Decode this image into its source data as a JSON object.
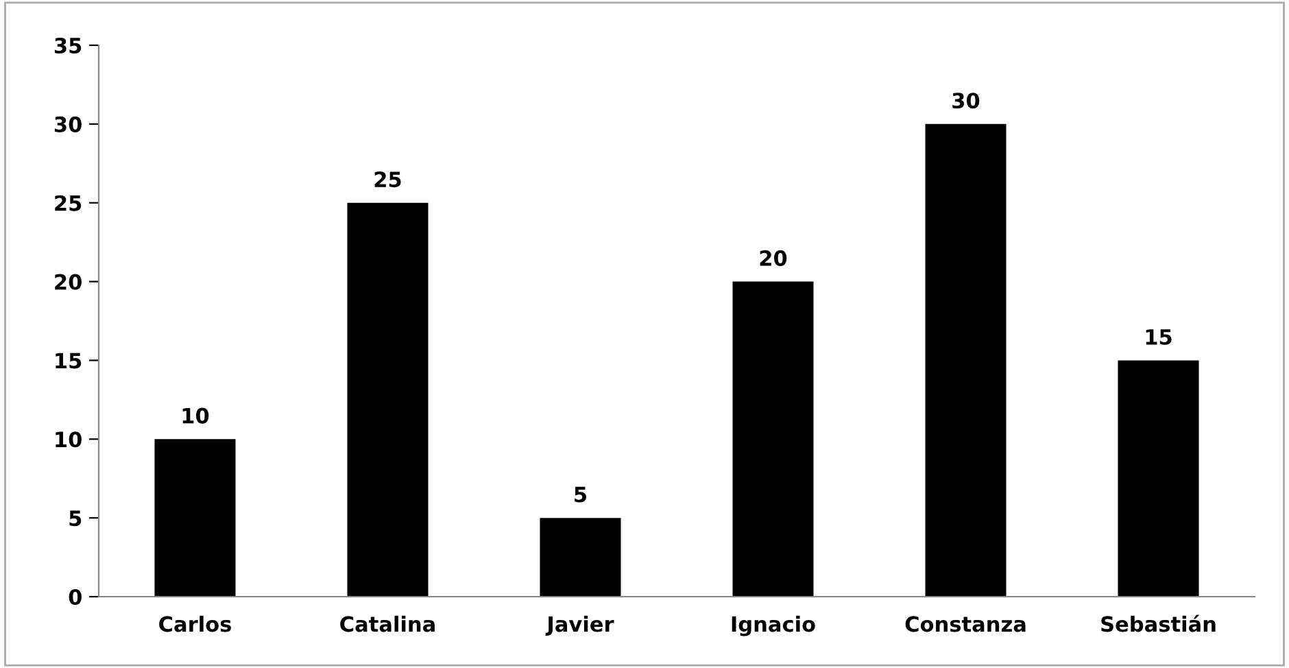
{
  "chart_data": {
    "type": "bar",
    "categories": [
      "Carlos",
      "Catalina",
      "Javier",
      "Ignacio",
      "Constanza",
      "Sebastián"
    ],
    "values": [
      10,
      25,
      5,
      20,
      30,
      15
    ],
    "color": "#000000",
    "ylim": [
      0,
      35
    ],
    "yticks": [
      0,
      5,
      10,
      15,
      20,
      25,
      30,
      35
    ],
    "data_labels": true,
    "grid": false,
    "legend": false
  }
}
